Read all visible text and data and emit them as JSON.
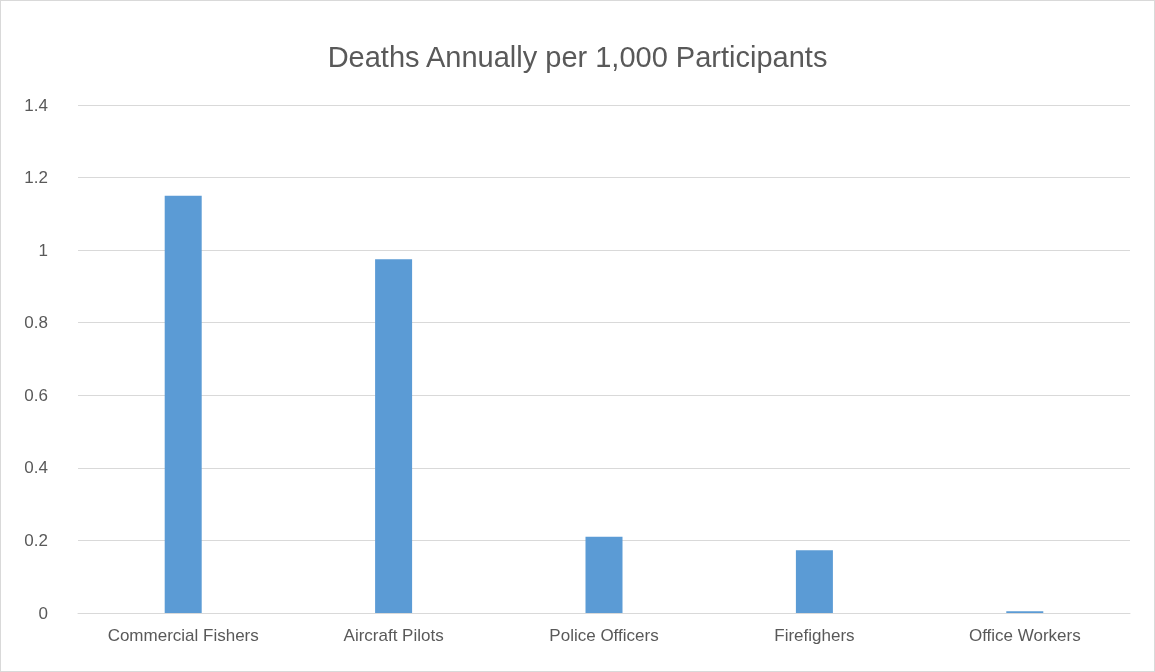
{
  "chart_data": {
    "type": "bar",
    "title": "Deaths Annually per 1,000 Participants",
    "categories": [
      "Commercial Fishers",
      "Aircraft Pilots",
      "Police Officers",
      "Firefighers",
      "Office Workers"
    ],
    "values": [
      1.15,
      0.975,
      0.21,
      0.173,
      0.005
    ],
    "color": "#5b9bd5",
    "ylim": [
      0,
      1.4
    ],
    "yticks": [
      0,
      0.2,
      0.4,
      0.6,
      0.8,
      1,
      1.2,
      1.4
    ],
    "grid": "y"
  }
}
